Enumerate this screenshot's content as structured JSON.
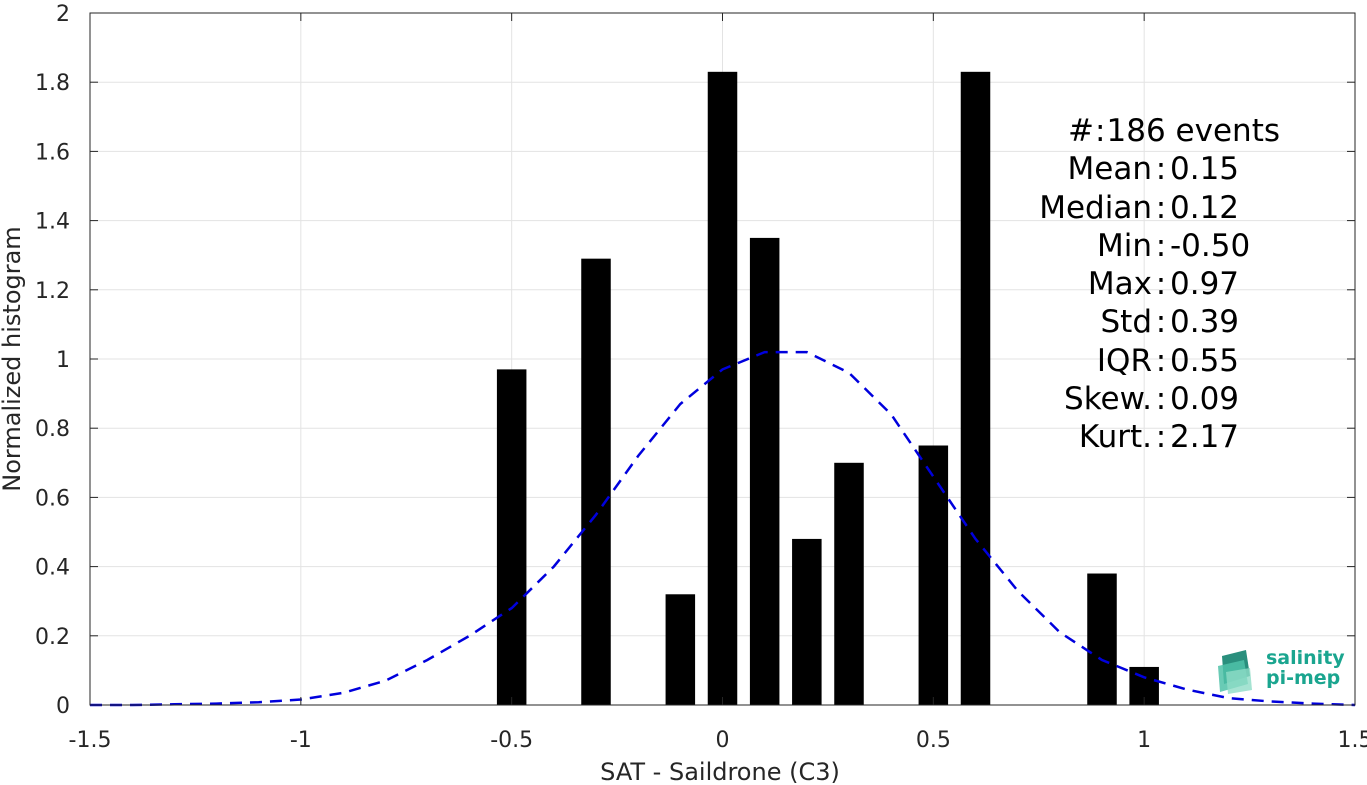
{
  "chart_data": {
    "type": "bar",
    "xlabel": "SAT - Saildrone (C3)",
    "ylabel": "Normalized histogram",
    "xlim": [
      -1.5,
      1.5
    ],
    "ylim": [
      0,
      2
    ],
    "xticks": [
      "-1.5",
      "-1",
      "-0.5",
      "0",
      "0.5",
      "1",
      "1.5"
    ],
    "yticks": [
      "0",
      "0.2",
      "0.4",
      "0.6",
      "0.8",
      "1",
      "1.2",
      "1.4",
      "1.6",
      "1.8",
      "2"
    ],
    "grid": true,
    "bar_color": "#000000",
    "bars": [
      {
        "x": -0.5,
        "value": 0.97
      },
      {
        "x": -0.3,
        "value": 1.29
      },
      {
        "x": -0.1,
        "value": 0.32
      },
      {
        "x": 0.0,
        "value": 1.83
      },
      {
        "x": 0.1,
        "value": 1.35
      },
      {
        "x": 0.2,
        "value": 0.48
      },
      {
        "x": 0.3,
        "value": 0.7
      },
      {
        "x": 0.5,
        "value": 0.75
      },
      {
        "x": 0.6,
        "value": 1.83
      },
      {
        "x": 0.9,
        "value": 0.38
      },
      {
        "x": 1.0,
        "value": 0.11
      }
    ],
    "bar_width": 0.07,
    "fit_curve": {
      "style": "dashed",
      "color": "#0000dd",
      "x": [
        -1.5,
        -1.4,
        -1.3,
        -1.2,
        -1.1,
        -1.0,
        -0.9,
        -0.8,
        -0.7,
        -0.6,
        -0.5,
        -0.4,
        -0.3,
        -0.2,
        -0.1,
        0.0,
        0.1,
        0.2,
        0.3,
        0.4,
        0.5,
        0.6,
        0.7,
        0.8,
        0.9,
        1.0,
        1.1,
        1.2,
        1.3,
        1.4,
        1.5
      ],
      "y": [
        0.0,
        0.0,
        0.002,
        0.004,
        0.008,
        0.016,
        0.035,
        0.07,
        0.13,
        0.2,
        0.28,
        0.4,
        0.55,
        0.72,
        0.87,
        0.97,
        1.02,
        1.02,
        0.96,
        0.84,
        0.66,
        0.48,
        0.33,
        0.21,
        0.13,
        0.08,
        0.045,
        0.02,
        0.01,
        0.004,
        0.0
      ]
    },
    "stats": [
      {
        "label": "#",
        "sep": ":",
        "value": "186 events"
      },
      {
        "label": "Mean",
        "sep": ":",
        "value": "0.15"
      },
      {
        "label": "Median",
        "sep": ":",
        "value": "0.12"
      },
      {
        "label": "Min",
        "sep": ":",
        "value": "-0.50"
      },
      {
        "label": "Max",
        "sep": ":",
        "value": "0.97"
      },
      {
        "label": "Std",
        "sep": ":",
        "value": "0.39"
      },
      {
        "label": "IQR",
        "sep": ":",
        "value": "0.55"
      },
      {
        "label": "Skew.",
        "sep": ":",
        "value": "0.09"
      },
      {
        "label": "Kurt.",
        "sep": ":",
        "value": "2.17"
      }
    ]
  },
  "logo": {
    "line1": "salinity",
    "line2": "pi-mep",
    "color": "#1aa58f"
  }
}
